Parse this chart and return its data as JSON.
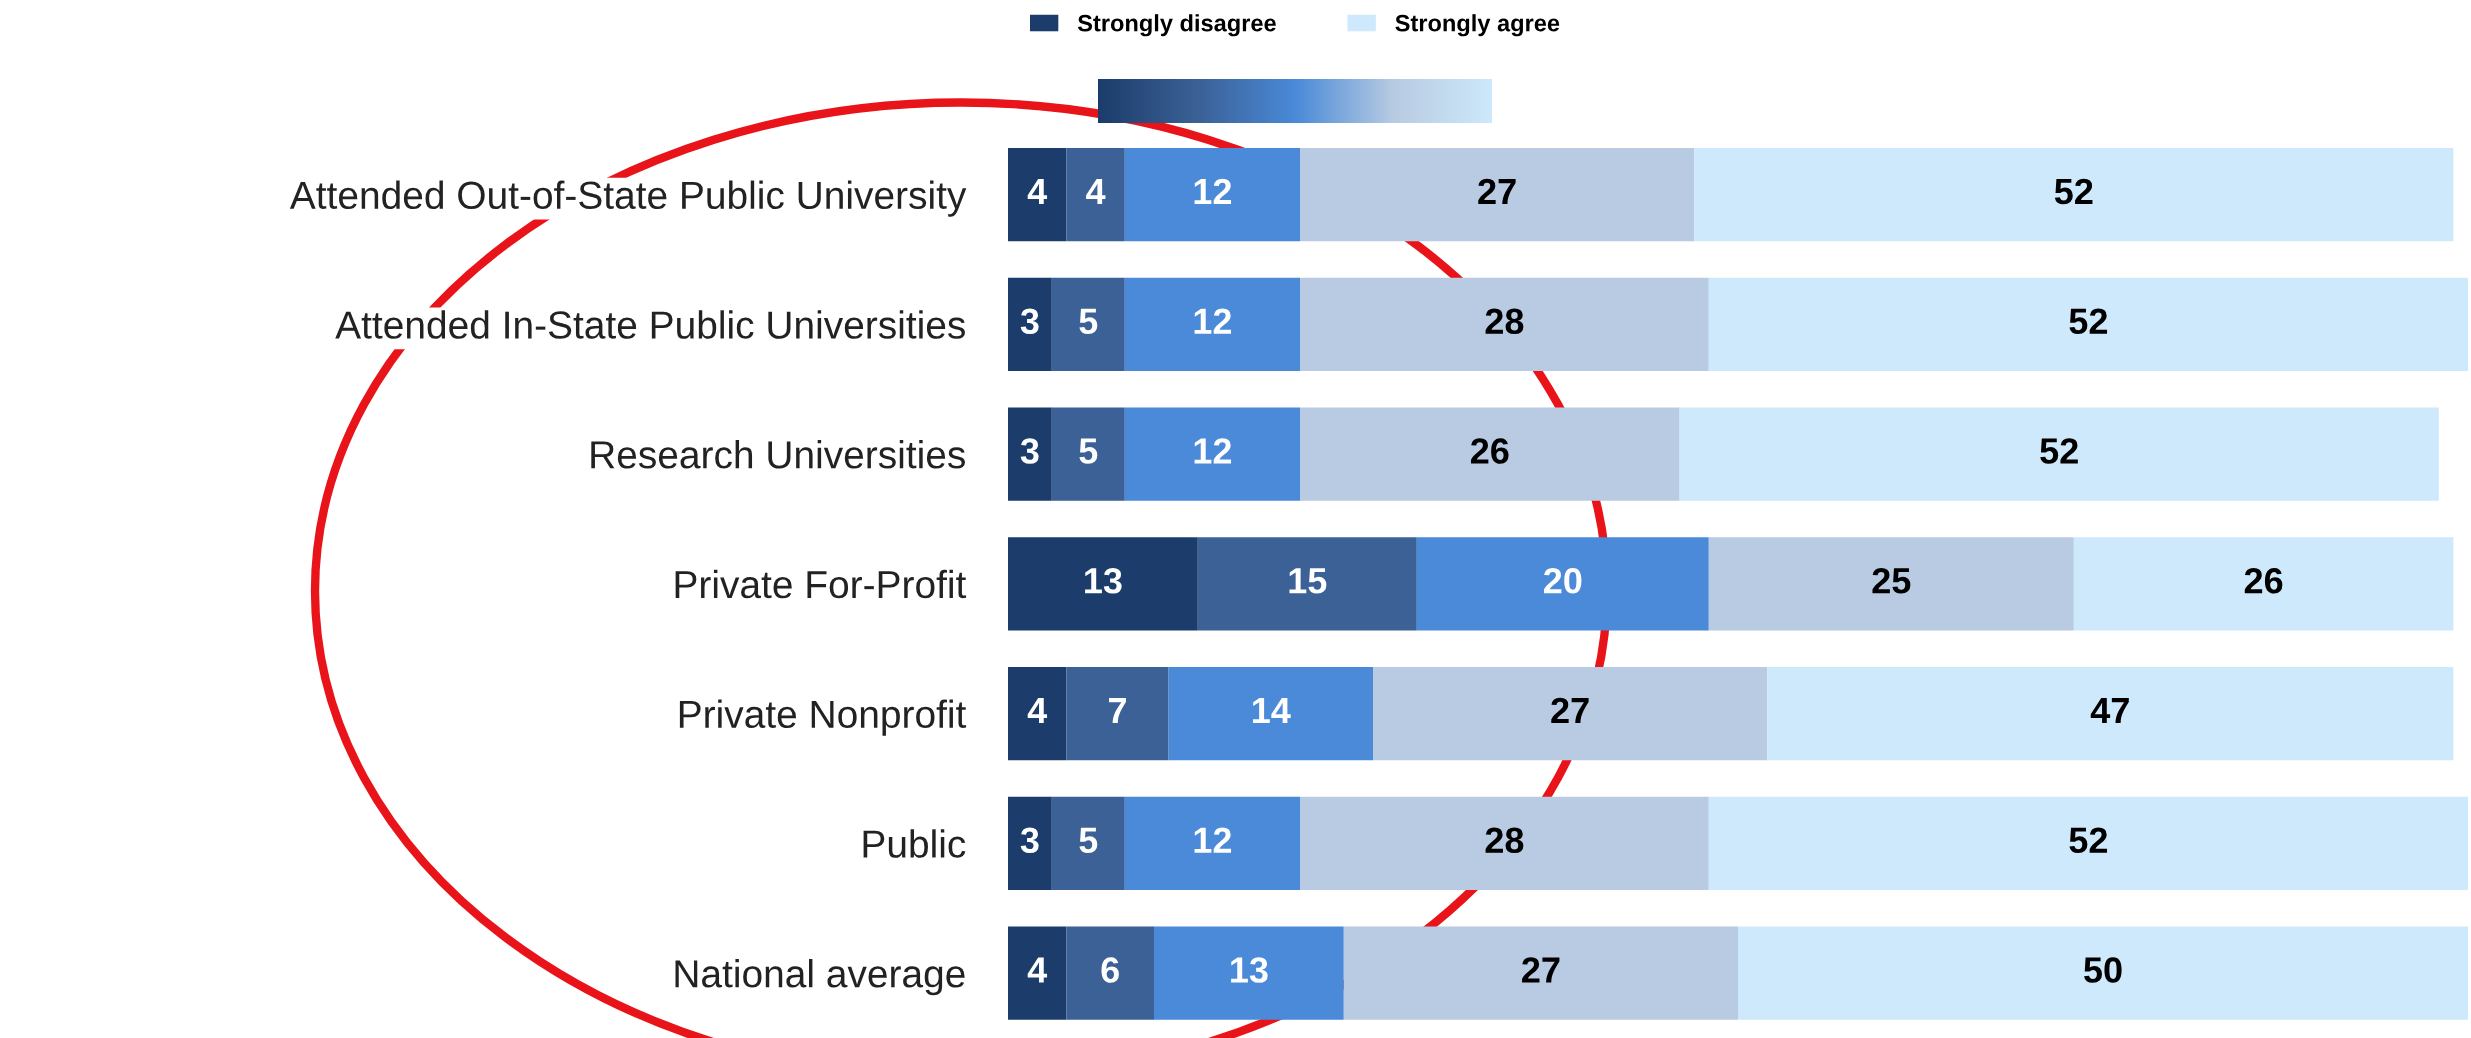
{
  "chart_data": {
    "type": "bar",
    "orientation": "horizontal",
    "stacked": true,
    "data_labels": true,
    "tick_labels": "y",
    "grid": false,
    "legend": "top",
    "categories": [
      "Attended Out-of-State Public University",
      "Attended In-State Public Universities",
      "Research Universities",
      "Private For-Profit",
      "Private Nonprofit",
      "Public",
      "National average"
    ],
    "xlim": [
      0,
      100
    ],
    "series": [
      {
        "name": "Strongly disagree",
        "color": "#1c3d6b",
        "values": [
          4,
          3,
          3,
          13,
          4,
          3,
          4
        ]
      },
      {
        "color": "#3b6196",
        "values": [
          4,
          5,
          5,
          15,
          7,
          5,
          6
        ]
      },
      {
        "color": "#4a8ad8",
        "values": [
          12,
          12,
          12,
          20,
          14,
          12,
          13
        ]
      },
      {
        "color": "#b8cbe2",
        "values": [
          27,
          28,
          26,
          25,
          27,
          28,
          27
        ]
      },
      {
        "name": "Strongly agree",
        "color": "#cde9fb",
        "values": [
          52,
          52,
          52,
          26,
          47,
          52,
          50
        ]
      }
    ]
  }
}
